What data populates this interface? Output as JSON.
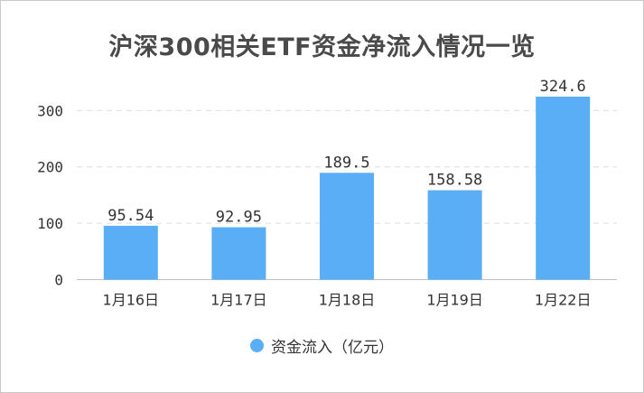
{
  "chart_data": {
    "type": "bar",
    "title": "沪深300相关ETF资金净流入情况一览",
    "categories": [
      "1月16日",
      "1月17日",
      "1月18日",
      "1月19日",
      "1月22日"
    ],
    "series": [
      {
        "name": "资金流入（亿元）",
        "values": [
          95.54,
          92.95,
          189.5,
          158.58,
          324.6
        ],
        "labels": [
          "95.54",
          "92.95",
          "189.5",
          "158.58",
          "324.6"
        ],
        "color": "#5aaef5"
      }
    ],
    "yticks": [
      0,
      100,
      200,
      300
    ],
    "ylim": [
      0,
      324.6
    ],
    "grid": true,
    "legend": "bottom-center"
  }
}
